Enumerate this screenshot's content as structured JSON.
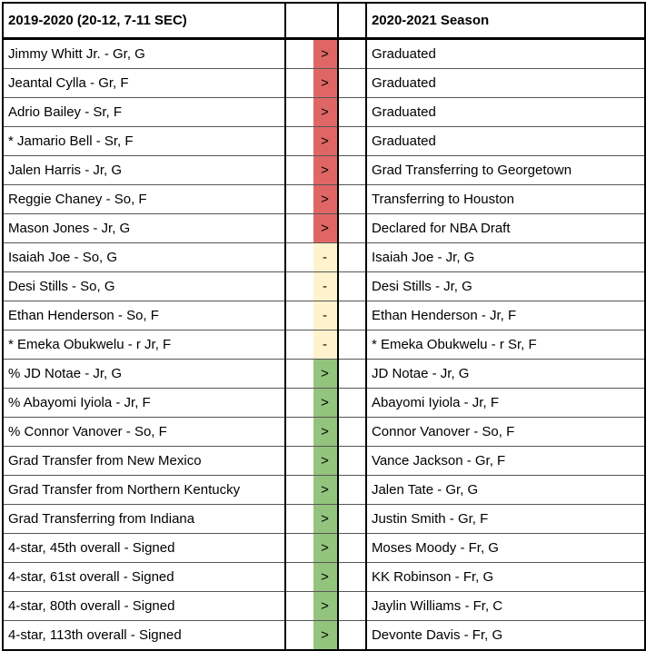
{
  "header": {
    "left_title": "2019-2020 (20-12, 7-11 SEC)",
    "middle_title": "",
    "right_title": "2020-2021 Season"
  },
  "status_colors": {
    "out": "#e06666",
    "stay": "#fff2cc",
    "in": "#93c47d"
  },
  "rows": [
    {
      "left": "Jimmy Whitt Jr. - Gr, G",
      "symbol": ">",
      "status": "out",
      "right": "Graduated"
    },
    {
      "left": "Jeantal Cylla - Gr, F",
      "symbol": ">",
      "status": "out",
      "right": "Graduated"
    },
    {
      "left": "Adrio Bailey - Sr, F",
      "symbol": ">",
      "status": "out",
      "right": "Graduated"
    },
    {
      "left": "* Jamario Bell - Sr, F",
      "symbol": ">",
      "status": "out",
      "right": "Graduated"
    },
    {
      "left": "Jalen Harris - Jr, G",
      "symbol": ">",
      "status": "out",
      "right": "Grad Transferring to Georgetown"
    },
    {
      "left": "Reggie Chaney - So, F",
      "symbol": ">",
      "status": "out",
      "right": "Transferring to Houston"
    },
    {
      "left": "Mason Jones - Jr, G",
      "symbol": ">",
      "status": "out",
      "right": "Declared for NBA Draft"
    },
    {
      "left": "Isaiah Joe - So, G",
      "symbol": "-",
      "status": "stay",
      "right": "Isaiah Joe - Jr, G"
    },
    {
      "left": "Desi Stills - So, G",
      "symbol": "-",
      "status": "stay",
      "right": "Desi Stills - Jr, G"
    },
    {
      "left": "Ethan Henderson - So, F",
      "symbol": "-",
      "status": "stay",
      "right": "Ethan Henderson - Jr, F"
    },
    {
      "left": "* Emeka Obukwelu - r Jr, F",
      "symbol": "-",
      "status": "stay",
      "right": "* Emeka Obukwelu - r Sr, F"
    },
    {
      "left": "% JD Notae - Jr, G",
      "symbol": ">",
      "status": "in",
      "right": "JD Notae - Jr, G"
    },
    {
      "left": "% Abayomi Iyiola - Jr, F",
      "symbol": ">",
      "status": "in",
      "right": "Abayomi Iyiola - Jr, F"
    },
    {
      "left": "% Connor Vanover - So, F",
      "symbol": ">",
      "status": "in",
      "right": "Connor Vanover - So, F"
    },
    {
      "left": "Grad Transfer from New Mexico",
      "symbol": ">",
      "status": "in",
      "right": "Vance Jackson - Gr, F"
    },
    {
      "left": "Grad Transfer from Northern Kentucky",
      "symbol": ">",
      "status": "in",
      "right": "Jalen Tate - Gr, G"
    },
    {
      "left": "Grad Transferring from Indiana",
      "symbol": ">",
      "status": "in",
      "right": "Justin Smith - Gr, F"
    },
    {
      "left": "4-star, 45th overall - Signed",
      "symbol": ">",
      "status": "in",
      "right": "Moses Moody - Fr, G"
    },
    {
      "left": "4-star, 61st overall - Signed",
      "symbol": ">",
      "status": "in",
      "right": "KK Robinson - Fr, G"
    },
    {
      "left": "4-star, 80th overall - Signed",
      "symbol": ">",
      "status": "in",
      "right": "Jaylin Williams - Fr, C"
    },
    {
      "left": "4-star, 113th overall - Signed",
      "symbol": ">",
      "status": "in",
      "right": "Devonte Davis - Fr, G"
    }
  ]
}
